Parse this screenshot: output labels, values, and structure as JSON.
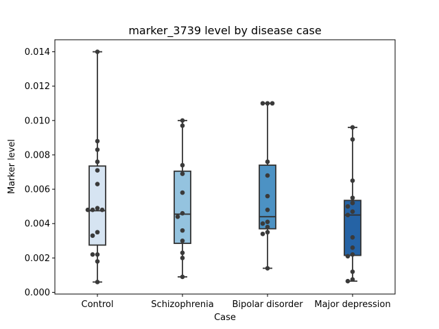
{
  "chart_data": {
    "type": "box",
    "title": "marker_3739 level by disease case",
    "xlabel": "Case",
    "ylabel": "Marker level",
    "ylim": [
      -0.0001,
      0.0147
    ],
    "yticks": [
      0.0,
      0.002,
      0.004,
      0.006,
      0.008,
      0.01,
      0.012,
      0.014
    ],
    "ytick_labels": [
      "0.000",
      "0.002",
      "0.004",
      "0.006",
      "0.008",
      "0.010",
      "0.012",
      "0.014"
    ],
    "grid": false,
    "categories": [
      "Control",
      "Schizophrenia",
      "Bipolar disorder",
      "Major depression"
    ],
    "colors": [
      "#d6e4f2",
      "#94c3df",
      "#4c92c4",
      "#2563a5"
    ],
    "point_color": "#3a3a3a",
    "line_color": "#333333",
    "boxes": [
      {
        "whisker_low": 0.0006,
        "q1": 0.00275,
        "median": 0.00475,
        "q3": 0.00735,
        "whisker_high": 0.014,
        "points": [
          0.014,
          0.0088,
          0.0083,
          0.0076,
          0.0071,
          0.0063,
          0.0049,
          0.0048,
          0.0048,
          0.0048,
          0.0035,
          0.0033,
          0.0022,
          0.0022,
          0.0018,
          0.0006
        ]
      },
      {
        "whisker_low": 0.0009,
        "q1": 0.00285,
        "median": 0.00455,
        "q3": 0.00705,
        "whisker_high": 0.01,
        "points": [
          0.01,
          0.0097,
          0.0074,
          0.0069,
          0.0058,
          0.0046,
          0.0044,
          0.0036,
          0.003,
          0.0023,
          0.002,
          0.0009
        ]
      },
      {
        "whisker_low": 0.0014,
        "q1": 0.0037,
        "median": 0.0044,
        "q3": 0.0074,
        "whisker_high": 0.011,
        "points": [
          0.011,
          0.011,
          0.011,
          0.0076,
          0.0068,
          0.0056,
          0.0048,
          0.0041,
          0.004,
          0.0038,
          0.0035,
          0.0034,
          0.0014
        ]
      },
      {
        "whisker_low": 0.00065,
        "q1": 0.00215,
        "median": 0.0045,
        "q3": 0.00535,
        "whisker_high": 0.0096,
        "points": [
          0.0096,
          0.0089,
          0.0065,
          0.0055,
          0.0052,
          0.005,
          0.0047,
          0.0045,
          0.0032,
          0.0026,
          0.0022,
          0.0021,
          0.0012,
          0.00075,
          0.00065
        ]
      }
    ]
  }
}
